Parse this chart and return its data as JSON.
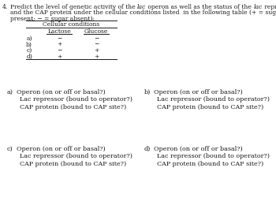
{
  "question_num": "4.",
  "q_line1a": "Predict the level of genetic activity of the ",
  "q_line1b": "lac",
  "q_line1c": " operon as well as the status of the ",
  "q_line1d": "lac",
  "q_line1e": " repressor",
  "q_line2": "and the CAP protein under the cellular conditions listed  in the following table (+ = sugar",
  "q_line3": "present; − = sugar absent):",
  "table_header": "Cellular conditions",
  "col1_header": "Lactose",
  "col2_header": "Glucose",
  "rows": [
    {
      "label": "a)",
      "lactose": "−",
      "glucose": "−"
    },
    {
      "label": "b)",
      "lactose": "+",
      "glucose": "−"
    },
    {
      "label": "c)",
      "lactose": "−",
      "glucose": "+"
    },
    {
      "label": "d)",
      "lactose": "+",
      "glucose": "+"
    }
  ],
  "answer_blocks": [
    {
      "letter": "a)",
      "line1": "Operon (on or off or basal?)",
      "line2": "Lac repressor (bound to operator?)",
      "line3": "CAP protein (bound to CAP site?)"
    },
    {
      "letter": "b)",
      "line1": "Operon (on or off or basal?)",
      "line2": "Lac repressor (bound to operator?)",
      "line3": "CAP protein (bound to CAP site?)"
    },
    {
      "letter": "c)",
      "line1": "Operon (on or off or basal?)",
      "line2": "Lac repressor (bound to operator?)",
      "line3": "CAP protein (bound to CAP site?)"
    },
    {
      "letter": "d)",
      "line1": "Operon (on or off or basal?)",
      "line2": "Lac repressor (bound to operator?)",
      "line3": "CAP protein (bound to CAP site?)"
    }
  ],
  "bg_color": "#ffffff",
  "text_color": "#1a1a1a",
  "fs_q": 5.5,
  "fs_t": 5.5,
  "fs_a": 5.8
}
